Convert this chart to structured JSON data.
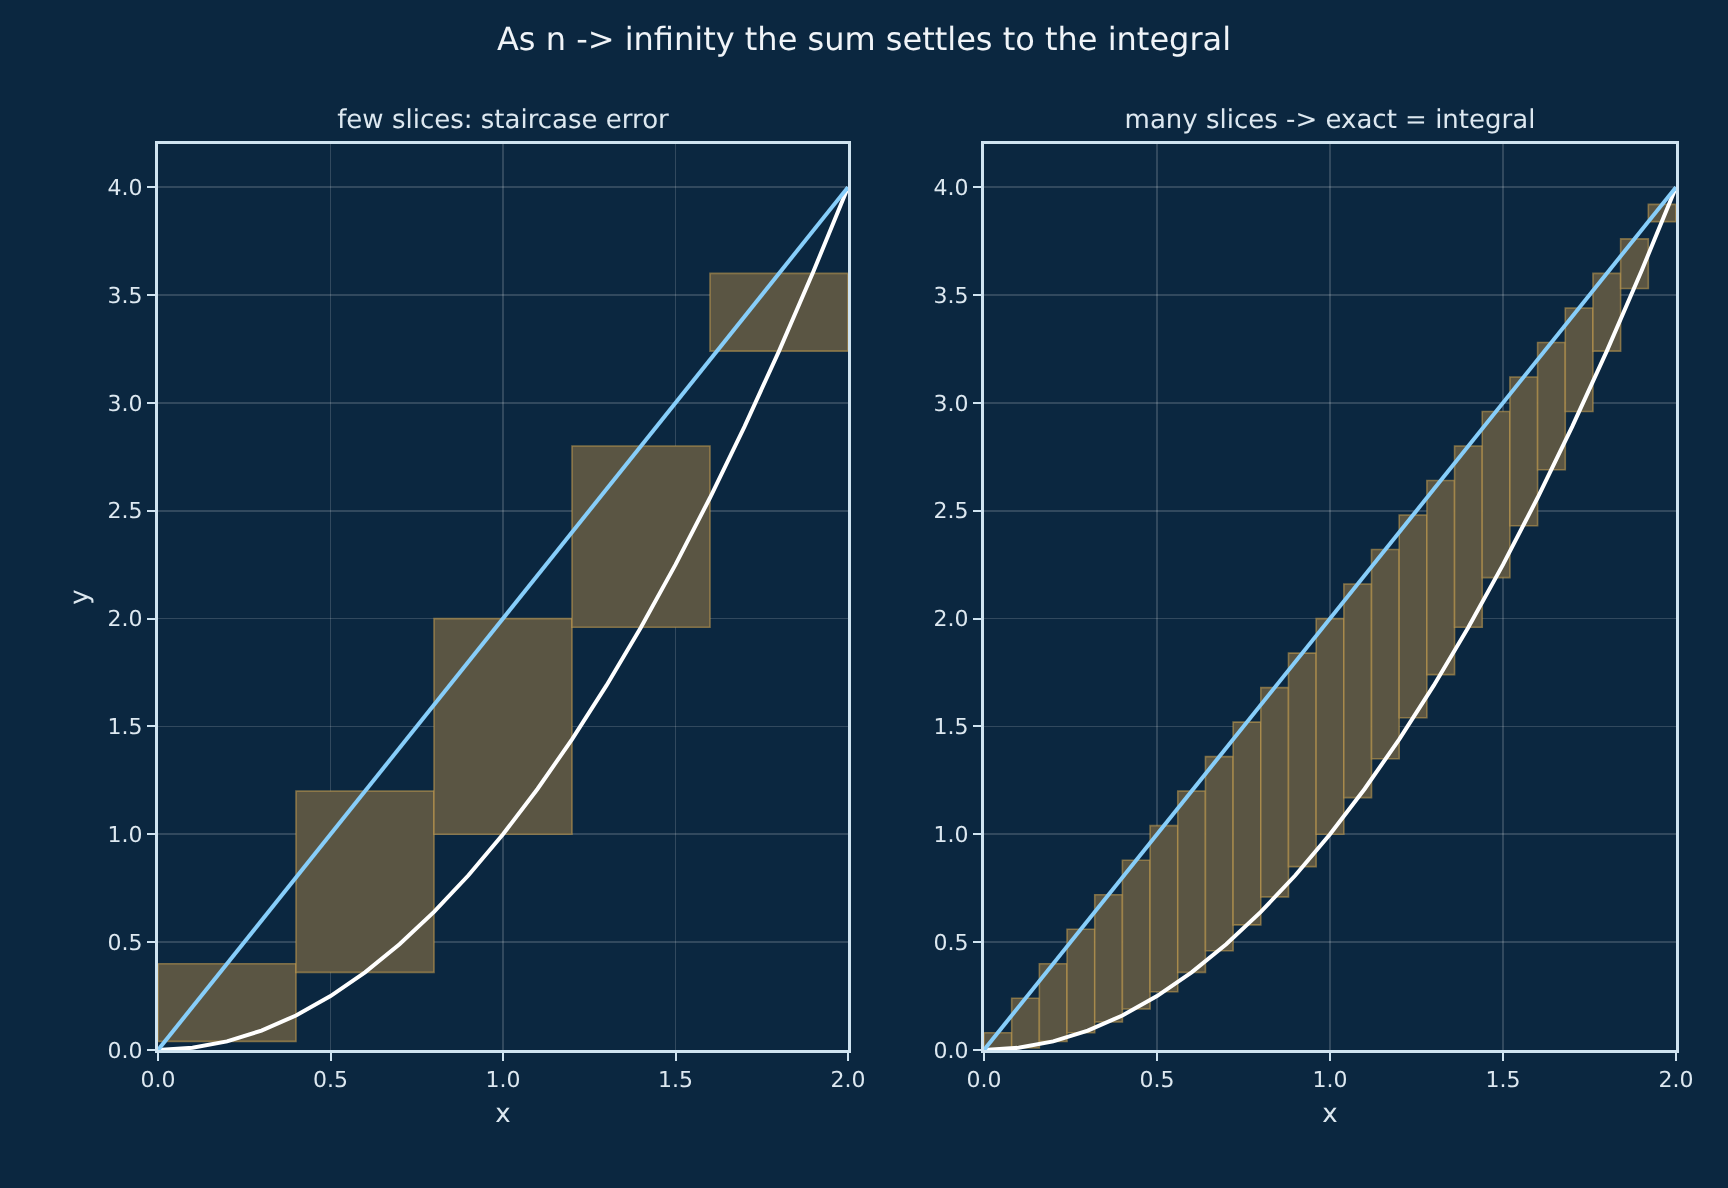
{
  "chart_data": [
    {
      "type": "bar",
      "title": "few slices: staircase error",
      "annotations": [
        "As n -> infinity the sum settles to the integral"
      ],
      "xlabel": "x",
      "ylabel": "y",
      "x": [
        0.2,
        0.6,
        1.0,
        1.4,
        1.8
      ],
      "series": [
        {
          "color": "#5a5543",
          "base": [
            0.04,
            0.36,
            1.0,
            1.96,
            3.24
          ],
          "values": [
            0.36,
            0.84,
            1.0,
            0.84,
            0.36
          ]
        },
        {
          "type": "line",
          "color": "#ffffff",
          "x": [
            0,
            0.1,
            0.2,
            0.3,
            0.4,
            0.5,
            0.6,
            0.7,
            0.8,
            0.9,
            1.0,
            1.1,
            1.2,
            1.3,
            1.4,
            1.5,
            1.6,
            1.7,
            1.8,
            1.9,
            2.0
          ],
          "values": [
            0,
            0.01,
            0.04,
            0.09,
            0.16,
            0.25,
            0.36,
            0.49,
            0.64,
            0.81,
            1.0,
            1.21,
            1.44,
            1.69,
            1.96,
            2.25,
            2.56,
            2.89,
            3.24,
            3.61,
            4.0
          ]
        },
        {
          "type": "line",
          "color": "#87cefa",
          "x": [
            0,
            2
          ],
          "values": [
            0,
            4
          ]
        }
      ],
      "xlim": [
        0,
        2
      ],
      "xticks": [
        {
          "value": 0,
          "label": "0.0"
        },
        {
          "value": 0.5,
          "label": "0.5"
        },
        {
          "value": 1,
          "label": "1.0"
        },
        {
          "value": 1.5,
          "label": "1.5"
        },
        {
          "value": 2,
          "label": "2.0"
        }
      ],
      "ylim": [
        0,
        4.2
      ],
      "yticks": [
        {
          "value": 0,
          "label": "0.0"
        },
        {
          "value": 0.5,
          "label": "0.5"
        },
        {
          "value": 1,
          "label": "1.0"
        },
        {
          "value": 1.5,
          "label": "1.5"
        },
        {
          "value": 2,
          "label": "2.0"
        },
        {
          "value": 2.5,
          "label": "2.5"
        },
        {
          "value": 3,
          "label": "3.0"
        },
        {
          "value": 3.5,
          "label": "3.5"
        },
        {
          "value": 4,
          "label": "4.0"
        }
      ],
      "grid": true
    },
    {
      "type": "bar",
      "title": "many slices -> exact = integral",
      "xlabel": "x",
      "x": [
        0.04,
        0.12,
        0.2,
        0.28,
        0.36,
        0.44,
        0.52,
        0.6,
        0.68,
        0.76,
        0.84,
        0.92,
        1.0,
        1.08,
        1.16,
        1.24,
        1.32,
        1.4,
        1.48,
        1.56,
        1.64,
        1.72,
        1.8,
        1.88,
        1.96
      ],
      "series": [
        {
          "color": "#5a5543",
          "base": [
            0.0,
            0.01,
            0.04,
            0.08,
            0.13,
            0.19,
            0.27,
            0.36,
            0.46,
            0.58,
            0.71,
            0.85,
            1.0,
            1.17,
            1.35,
            1.54,
            1.74,
            1.96,
            2.19,
            2.43,
            2.69,
            2.96,
            3.24,
            3.53,
            3.84
          ],
          "values": [
            0.08,
            0.23,
            0.36,
            0.48,
            0.59,
            0.69,
            0.77,
            0.84,
            0.9,
            0.94,
            0.97,
            0.99,
            1.0,
            0.99,
            0.97,
            0.94,
            0.9,
            0.84,
            0.77,
            0.69,
            0.59,
            0.48,
            0.36,
            0.23,
            0.08
          ]
        },
        {
          "type": "line",
          "color": "#ffffff",
          "x": [
            0,
            0.1,
            0.2,
            0.3,
            0.4,
            0.5,
            0.6,
            0.7,
            0.8,
            0.9,
            1.0,
            1.1,
            1.2,
            1.3,
            1.4,
            1.5,
            1.6,
            1.7,
            1.8,
            1.9,
            2.0
          ],
          "values": [
            0,
            0.01,
            0.04,
            0.09,
            0.16,
            0.25,
            0.36,
            0.49,
            0.64,
            0.81,
            1.0,
            1.21,
            1.44,
            1.69,
            1.96,
            2.25,
            2.56,
            2.89,
            3.24,
            3.61,
            4.0
          ]
        },
        {
          "type": "line",
          "color": "#87cefa",
          "x": [
            0,
            2
          ],
          "values": [
            0,
            4
          ]
        }
      ],
      "xlim": [
        0,
        2
      ],
      "xticks": [
        {
          "value": 0,
          "label": "0.0"
        },
        {
          "value": 0.5,
          "label": "0.5"
        },
        {
          "value": 1,
          "label": "1.0"
        },
        {
          "value": 1.5,
          "label": "1.5"
        },
        {
          "value": 2,
          "label": "2.0"
        }
      ],
      "ylim": [
        0,
        4.2
      ],
      "yticks": [
        {
          "value": 0,
          "label": "0.0"
        },
        {
          "value": 0.5,
          "label": "0.5"
        },
        {
          "value": 1,
          "label": "1.0"
        },
        {
          "value": 1.5,
          "label": "1.5"
        },
        {
          "value": 2,
          "label": "2.0"
        },
        {
          "value": 2.5,
          "label": "2.5"
        },
        {
          "value": 3,
          "label": "3.0"
        },
        {
          "value": 3.5,
          "label": "3.5"
        },
        {
          "value": 4,
          "label": "4.0"
        }
      ],
      "grid": true
    }
  ]
}
